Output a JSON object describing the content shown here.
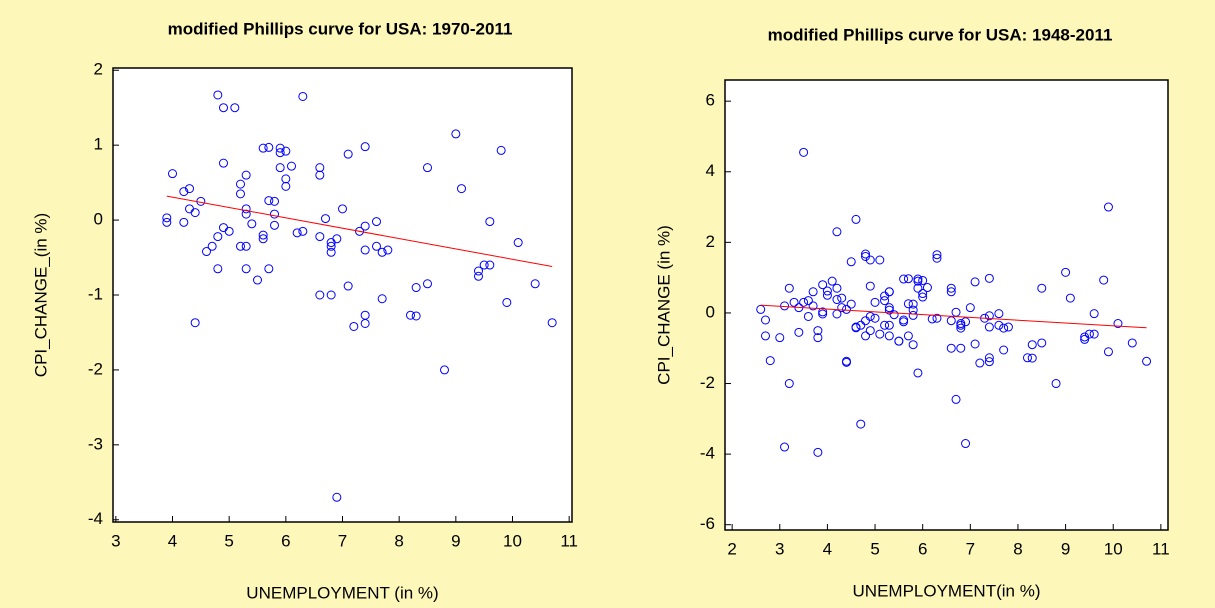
{
  "chart_data": [
    {
      "type": "scatter",
      "title": "modified Phillips curve for USA: 1970-2011",
      "x_label": "UNEMPLOYMENT (in %)",
      "y_label": "CPI_CHANGE_(in %)",
      "xlim": [
        2.95,
        11.05
      ],
      "ylim": [
        -4.03,
        2.03
      ],
      "xticks": [
        3,
        4,
        5,
        6,
        7,
        8,
        9,
        10,
        11
      ],
      "yticks": [
        -4,
        -3,
        -2,
        -1,
        0,
        1,
        2
      ],
      "points": {
        "color": "#0000ff",
        "x": [
          3.9,
          3.9,
          4.0,
          4.2,
          4.2,
          4.3,
          4.3,
          4.4,
          4.4,
          4.5,
          4.6,
          4.7,
          4.8,
          4.8,
          4.8,
          4.9,
          4.9,
          4.9,
          5.0,
          5.1,
          5.2,
          5.2,
          5.2,
          5.3,
          5.3,
          5.3,
          5.3,
          5.3,
          5.4,
          5.5,
          5.6,
          5.6,
          5.6,
          5.7,
          5.7,
          5.7,
          5.8,
          5.8,
          5.8,
          5.9,
          5.9,
          5.9,
          6.0,
          6.0,
          6.0,
          6.1,
          6.2,
          6.3,
          6.3,
          6.6,
          6.6,
          6.6,
          6.6,
          6.7,
          6.8,
          6.8,
          6.8,
          6.8,
          6.9,
          6.9,
          7.0,
          7.1,
          7.1,
          7.2,
          7.3,
          7.4,
          7.4,
          7.4,
          7.4,
          7.4,
          7.6,
          7.6,
          7.7,
          7.7,
          7.8,
          8.2,
          8.3,
          8.3,
          8.5,
          8.5,
          8.8,
          9.0,
          9.1,
          9.4,
          9.4,
          9.5,
          9.6,
          9.6,
          9.8,
          9.9,
          10.1,
          10.4,
          10.7
        ],
        "values": [
          0.03,
          -0.03,
          0.62,
          0.38,
          -0.03,
          0.42,
          0.15,
          0.1,
          -1.37,
          0.25,
          -0.42,
          -0.35,
          1.67,
          -0.65,
          -0.22,
          1.5,
          0.76,
          -0.1,
          -0.15,
          1.5,
          0.48,
          0.35,
          -0.35,
          0.6,
          0.15,
          0.08,
          -0.35,
          -0.65,
          -0.05,
          -0.8,
          0.96,
          -0.2,
          -0.25,
          0.97,
          0.26,
          -0.65,
          0.25,
          0.08,
          -0.07,
          0.96,
          0.9,
          0.7,
          0.92,
          0.55,
          0.45,
          0.72,
          -0.17,
          1.65,
          -0.15,
          0.7,
          0.6,
          -0.22,
          -1.0,
          0.02,
          -0.3,
          -0.35,
          -0.43,
          -1.0,
          -0.25,
          -3.7,
          0.15,
          0.88,
          -0.88,
          -1.42,
          -0.15,
          0.98,
          -0.08,
          -0.4,
          -1.27,
          -1.38,
          -0.02,
          -0.35,
          -1.05,
          -0.43,
          -0.4,
          -1.27,
          -1.28,
          -0.9,
          0.7,
          -0.85,
          -2.0,
          1.15,
          0.42,
          -0.68,
          -0.75,
          -0.6,
          -0.6,
          -0.02,
          0.93,
          -1.1,
          -0.3,
          -0.85,
          -1.37
        ]
      },
      "fit": {
        "color": "#ff0000",
        "x": [
          3.9,
          10.7
        ],
        "values": [
          0.32,
          -0.62
        ]
      }
    },
    {
      "type": "scatter",
      "title": "modified Phillips curve for USA: 1948-2011",
      "x_label": "UNEMPLOYMENT(in %)",
      "y_label": "CPI_CHANGE (in %)",
      "xlim": [
        1.85,
        11.15
      ],
      "ylim": [
        -6.15,
        6.6
      ],
      "xticks": [
        2,
        3,
        4,
        5,
        6,
        7,
        8,
        9,
        10,
        11
      ],
      "yticks": [
        -6,
        -4,
        -2,
        0,
        2,
        4,
        6
      ],
      "points": {
        "color": "#0000ff",
        "x": [
          3.9,
          3.9,
          4.0,
          4.2,
          4.2,
          4.3,
          4.3,
          4.4,
          4.4,
          4.5,
          4.6,
          4.7,
          4.8,
          4.8,
          4.8,
          4.9,
          4.9,
          4.9,
          5.0,
          5.1,
          5.2,
          5.2,
          5.2,
          5.3,
          5.3,
          5.3,
          5.3,
          5.3,
          5.4,
          5.5,
          5.6,
          5.6,
          5.6,
          5.7,
          5.7,
          5.7,
          5.8,
          5.8,
          5.8,
          5.9,
          5.9,
          5.9,
          6.0,
          6.0,
          6.0,
          6.1,
          6.2,
          6.3,
          6.3,
          6.6,
          6.6,
          6.6,
          6.6,
          6.7,
          6.8,
          6.8,
          6.8,
          6.8,
          6.9,
          6.9,
          7.0,
          7.1,
          7.1,
          7.2,
          7.3,
          7.4,
          7.4,
          7.4,
          7.4,
          7.4,
          7.6,
          7.6,
          7.7,
          7.7,
          7.8,
          8.2,
          8.3,
          8.3,
          8.5,
          8.5,
          8.8,
          9.0,
          9.1,
          9.4,
          9.4,
          9.5,
          9.6,
          9.6,
          9.8,
          9.9,
          10.1,
          10.4,
          10.7,
          2.6,
          2.7,
          2.7,
          2.8,
          3.0,
          3.1,
          3.1,
          3.2,
          3.2,
          3.3,
          3.4,
          3.4,
          3.5,
          3.5,
          3.6,
          3.6,
          3.7,
          3.7,
          3.8,
          3.8,
          3.8,
          3.9,
          4.0,
          4.1,
          4.2,
          4.2,
          4.4,
          4.5,
          4.6,
          4.6,
          4.7,
          4.8,
          4.9,
          5.0,
          5.1,
          5.3,
          5.5,
          5.8,
          5.9,
          6.3,
          6.7,
          9.9
        ],
        "values": [
          0.03,
          -0.03,
          0.62,
          0.38,
          -0.03,
          0.42,
          0.15,
          0.1,
          -1.37,
          0.25,
          -0.42,
          -0.35,
          1.67,
          -0.65,
          -0.22,
          1.5,
          0.76,
          -0.1,
          -0.15,
          1.5,
          0.48,
          0.35,
          -0.35,
          0.6,
          0.15,
          0.08,
          -0.35,
          -0.65,
          -0.05,
          -0.8,
          0.96,
          -0.2,
          -0.25,
          0.97,
          0.26,
          -0.65,
          0.25,
          0.08,
          -0.07,
          0.96,
          0.9,
          0.7,
          0.92,
          0.55,
          0.45,
          0.72,
          -0.17,
          1.65,
          -0.15,
          0.7,
          0.6,
          -0.22,
          -1.0,
          0.02,
          -0.3,
          -0.35,
          -0.43,
          -1.0,
          -0.25,
          -3.7,
          0.15,
          0.88,
          -0.88,
          -1.42,
          -0.15,
          0.98,
          -0.08,
          -0.4,
          -1.27,
          -1.38,
          -0.02,
          -0.35,
          -1.05,
          -0.43,
          -0.4,
          -1.27,
          -1.28,
          -0.9,
          0.7,
          -0.85,
          -2.0,
          1.15,
          0.42,
          -0.68,
          -0.75,
          -0.6,
          -0.6,
          -0.02,
          0.93,
          -1.1,
          -0.3,
          -0.85,
          -1.37,
          0.1,
          -0.2,
          -0.65,
          -1.35,
          -0.7,
          -3.8,
          0.2,
          0.7,
          -2.0,
          0.3,
          0.15,
          -0.55,
          4.55,
          0.3,
          0.35,
          -0.1,
          0.2,
          0.6,
          -3.95,
          -0.5,
          -0.7,
          0.8,
          0.5,
          0.9,
          2.3,
          0.7,
          -1.4,
          1.45,
          2.65,
          -0.4,
          -3.15,
          1.6,
          -0.5,
          0.3,
          -0.6,
          0.6,
          -0.8,
          -0.9,
          -1.7,
          1.55,
          -2.45,
          3.0
        ]
      },
      "fit": {
        "color": "#ff0000",
        "x": [
          2.6,
          10.7
        ],
        "values": [
          0.22,
          -0.42
        ]
      }
    }
  ]
}
